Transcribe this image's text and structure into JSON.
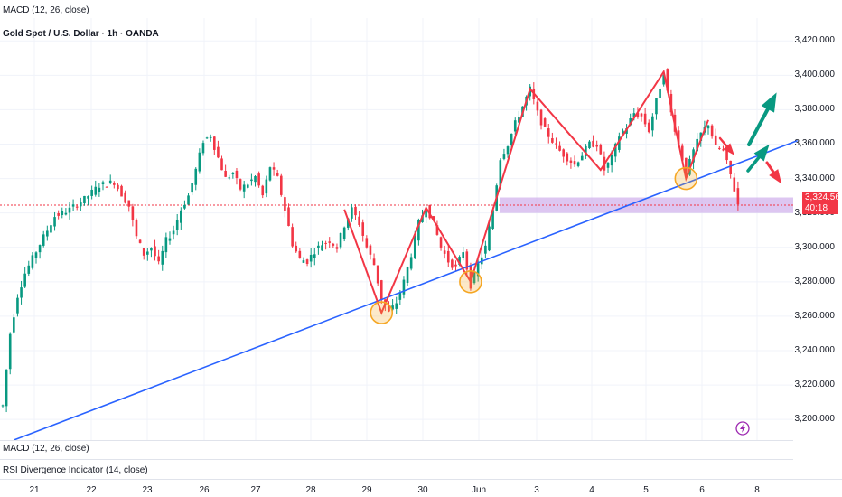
{
  "header": {
    "macd_top": "MACD (12, 26, close)",
    "symbol_title": "Gold Spot / U.S. Dollar · 1h · OANDA"
  },
  "indicators": {
    "macd": "MACD (12, 26, close)",
    "rsi": "RSI Divergence Indicator (14, close)"
  },
  "price_tag": {
    "price": "3,324.560",
    "countdown": "40:18"
  },
  "colors": {
    "up": "#089981",
    "down": "#f23645",
    "trendline": "#2962ff",
    "pattern": "#f23645",
    "zone": "#d1b3ec",
    "circle": "#f5a623",
    "arrow_up": "#089981"
  },
  "chart_data": {
    "type": "candlestick",
    "title": "Gold Spot / U.S. Dollar · 1h · OANDA",
    "ylim": [
      3188,
      3428
    ],
    "y_ticks": [
      "3,420.000",
      "3,400.000",
      "3,380.000",
      "3,360.000",
      "3,340.000",
      "3,320.000",
      "3,300.000",
      "3,280.000",
      "3,260.000",
      "3,240.000",
      "3,220.000",
      "3,200.000"
    ],
    "y_tick_values": [
      3420,
      3400,
      3380,
      3360,
      3340,
      3320,
      3300,
      3280,
      3260,
      3240,
      3220,
      3200
    ],
    "x_ticks": [
      "21",
      "22",
      "23",
      "26",
      "27",
      "28",
      "29",
      "30",
      "Jun",
      "3",
      "4",
      "5",
      "6",
      "8"
    ],
    "x_tick_index": [
      0,
      1,
      2,
      3,
      4,
      5,
      6,
      7,
      8,
      9,
      10,
      11,
      12,
      13
    ],
    "last_price": 3324.56,
    "approx_path": [
      [
        0,
        3208
      ],
      [
        2,
        3250
      ],
      [
        4,
        3272
      ],
      [
        6,
        3285
      ],
      [
        10,
        3302
      ],
      [
        14,
        3318
      ],
      [
        18,
        3322
      ],
      [
        22,
        3328
      ],
      [
        26,
        3336
      ],
      [
        30,
        3338
      ],
      [
        34,
        3324
      ],
      [
        36,
        3306
      ],
      [
        38,
        3296
      ],
      [
        40,
        3300
      ],
      [
        42,
        3290
      ],
      [
        44,
        3304
      ],
      [
        46,
        3310
      ],
      [
        48,
        3322
      ],
      [
        50,
        3330
      ],
      [
        52,
        3345
      ],
      [
        54,
        3362
      ],
      [
        56,
        3365
      ],
      [
        58,
        3352
      ],
      [
        60,
        3340
      ],
      [
        62,
        3343
      ],
      [
        64,
        3334
      ],
      [
        66,
        3337
      ],
      [
        68,
        3341
      ],
      [
        70,
        3330
      ],
      [
        72,
        3347
      ],
      [
        74,
        3340
      ],
      [
        76,
        3322
      ],
      [
        78,
        3302
      ],
      [
        80,
        3293
      ],
      [
        82,
        3292
      ],
      [
        84,
        3298
      ],
      [
        86,
        3302
      ],
      [
        88,
        3304
      ],
      [
        90,
        3300
      ],
      [
        92,
        3313
      ],
      [
        94,
        3322
      ],
      [
        96,
        3314
      ],
      [
        98,
        3300
      ],
      [
        100,
        3290
      ],
      [
        102,
        3270
      ],
      [
        104,
        3262
      ],
      [
        106,
        3268
      ],
      [
        108,
        3280
      ],
      [
        110,
        3296
      ],
      [
        112,
        3314
      ],
      [
        114,
        3324
      ],
      [
        116,
        3314
      ],
      [
        118,
        3300
      ],
      [
        120,
        3292
      ],
      [
        122,
        3288
      ],
      [
        124,
        3298
      ],
      [
        126,
        3278
      ],
      [
        128,
        3290
      ],
      [
        130,
        3300
      ],
      [
        132,
        3322
      ],
      [
        134,
        3352
      ],
      [
        136,
        3360
      ],
      [
        138,
        3372
      ],
      [
        140,
        3382
      ],
      [
        142,
        3392
      ],
      [
        144,
        3378
      ],
      [
        146,
        3368
      ],
      [
        148,
        3362
      ],
      [
        150,
        3356
      ],
      [
        152,
        3352
      ],
      [
        154,
        3348
      ],
      [
        156,
        3354
      ],
      [
        158,
        3360
      ],
      [
        160,
        3360
      ],
      [
        162,
        3345
      ],
      [
        164,
        3352
      ],
      [
        166,
        3365
      ],
      [
        168,
        3370
      ],
      [
        170,
        3378
      ],
      [
        172,
        3376
      ],
      [
        174,
        3368
      ],
      [
        176,
        3385
      ],
      [
        178,
        3402
      ],
      [
        180,
        3378
      ],
      [
        182,
        3360
      ],
      [
        184,
        3343
      ],
      [
        186,
        3356
      ],
      [
        188,
        3366
      ],
      [
        190,
        3372
      ],
      [
        192,
        3358
      ],
      [
        194,
        3356
      ],
      [
        196,
        3342
      ],
      [
        198,
        3325
      ]
    ],
    "n_bars": 200,
    "support_zone": [
      3320,
      3329
    ],
    "trendline": {
      "from": [
        3,
        3188
      ],
      "to": [
        214,
        3362
      ]
    },
    "pattern_lines": [
      [
        [
          92,
          3322
        ],
        [
          102,
          3262
        ],
        [
          114,
          3323
        ],
        [
          126,
          3280
        ],
        [
          142,
          3392
        ],
        [
          161,
          3345
        ],
        [
          178,
          3402
        ],
        [
          184,
          3340
        ],
        [
          190,
          3374
        ]
      ]
    ],
    "circles": [
      [
        102,
        3262
      ],
      [
        126,
        3280
      ],
      [
        184,
        3340
      ]
    ],
    "grid": true
  }
}
